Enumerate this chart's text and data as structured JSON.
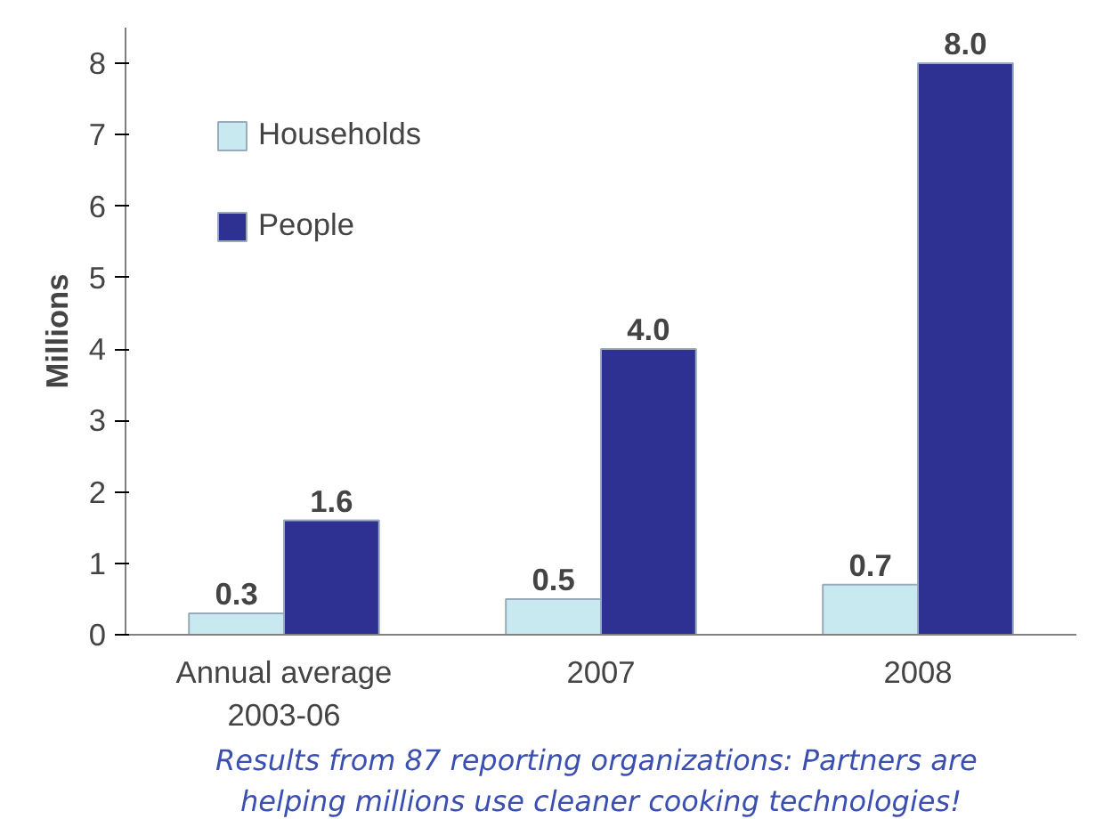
{
  "chart_data": {
    "type": "bar",
    "ylabel": "Millions",
    "categories": [
      "Annual average\n2003-06",
      "2007",
      "2008"
    ],
    "series": [
      {
        "name": "Households",
        "color": "#c8e9f0",
        "values": [
          0.3,
          0.5,
          0.7
        ],
        "value_labels": [
          "0.3",
          "0.5",
          "0.7"
        ]
      },
      {
        "name": "People",
        "color": "#2e3192",
        "values": [
          1.6,
          4.0,
          8.0
        ],
        "value_labels": [
          "1.6",
          "4.0",
          "8.0"
        ]
      }
    ],
    "ylim": [
      0,
      8.5
    ],
    "yticks": [
      0,
      1,
      2,
      3,
      4,
      5,
      6,
      7,
      8
    ],
    "grid": false,
    "legend": "top left",
    "annotations": [
      "Results from 87 reporting organizations:  Partners are",
      "helping millions use cleaner cooking technologies!"
    ]
  }
}
